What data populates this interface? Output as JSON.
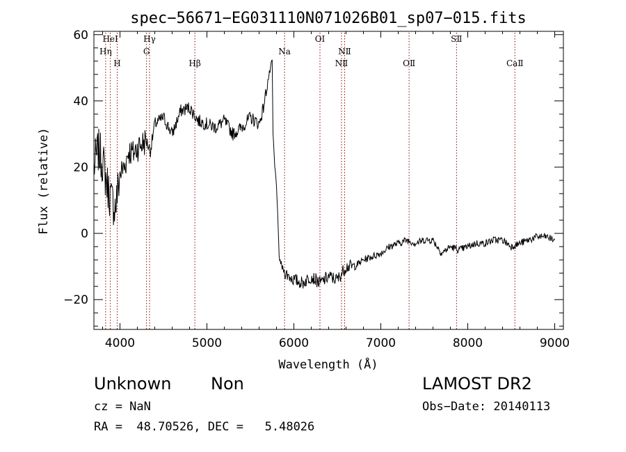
{
  "chart_data": {
    "type": "line",
    "title": "spec−56671−EG031110N071026B01_sp07−015.fits",
    "xlabel": "Wavelength (Å)",
    "ylabel": "Flux (relative)",
    "xlim": [
      3700,
      9100
    ],
    "ylim": [
      -29,
      61
    ],
    "x_ticks": [
      4000,
      5000,
      6000,
      7000,
      8000,
      9000
    ],
    "y_ticks": [
      -20,
      0,
      20,
      40,
      60
    ],
    "y_tick_labels": [
      "−20",
      "0",
      "20",
      "40",
      "60"
    ],
    "grid": false,
    "series_color": "#000000",
    "line_color": "#8b0000",
    "spectrum": {
      "x": [
        3700,
        3750,
        3800,
        3850,
        3900,
        3950,
        4000,
        4050,
        4100,
        4150,
        4200,
        4250,
        4300,
        4350,
        4400,
        4500,
        4600,
        4700,
        4800,
        4900,
        5000,
        5100,
        5200,
        5300,
        5400,
        5500,
        5600,
        5650,
        5700,
        5750,
        5760,
        5780,
        5800,
        5830,
        5860,
        5900,
        5950,
        6000,
        6100,
        6200,
        6300,
        6400,
        6500,
        6600,
        6700,
        6800,
        6900,
        7000,
        7100,
        7200,
        7300,
        7400,
        7500,
        7600,
        7700,
        7800,
        7900,
        8000,
        8100,
        8200,
        8300,
        8400,
        8500,
        8600,
        8700,
        8800,
        8900,
        9000
      ],
      "y": [
        20,
        25,
        22,
        15,
        10,
        8,
        18,
        20,
        25,
        24,
        26,
        27,
        28,
        25,
        33,
        35,
        30,
        37,
        38,
        34,
        33,
        32,
        34,
        30,
        32,
        35,
        33,
        38,
        46,
        52,
        30,
        20,
        15,
        -7,
        -10,
        -12,
        -13,
        -14,
        -15,
        -13,
        -15,
        -13,
        -14,
        -10,
        -10,
        -8,
        -7,
        -6,
        -4,
        -3,
        -2,
        -3,
        -2,
        -2,
        -6,
        -4,
        -5,
        -4,
        -3,
        -3,
        -2,
        -2,
        -4,
        -3,
        -2,
        -1,
        -1,
        -2
      ]
    },
    "lines": [
      {
        "label": "HeⅠ",
        "x": 3889,
        "row": 0
      },
      {
        "label": "Hη",
        "x": 3835,
        "row": 1
      },
      {
        "label": "H",
        "x": 3968,
        "row": 2
      },
      {
        "label": "Hγ",
        "x": 4340,
        "row": 0
      },
      {
        "label": "G",
        "x": 4305,
        "row": 1
      },
      {
        "label": "Hβ",
        "x": 4861,
        "row": 2
      },
      {
        "label": "Na",
        "x": 5893,
        "row": 1
      },
      {
        "label": "OⅠ",
        "x": 6300,
        "row": 0
      },
      {
        "label": "NⅡ",
        "x": 6584,
        "row": 1
      },
      {
        "label": "NⅡ",
        "x": 6548,
        "row": 2
      },
      {
        "label": "OⅡ",
        "x": 7325,
        "row": 2
      },
      {
        "label": "SⅡ",
        "x": 7871,
        "row": 0
      },
      {
        "label": "CaⅡ",
        "x": 8542,
        "row": 2
      }
    ]
  },
  "info": {
    "class": "Unknown",
    "subclass": "Non",
    "survey": "LAMOST DR2",
    "cz": "cz = NaN",
    "obs_date": "Obs−Date: 20140113",
    "coords": "RA =  48.70526, DEC =   5.48026"
  }
}
